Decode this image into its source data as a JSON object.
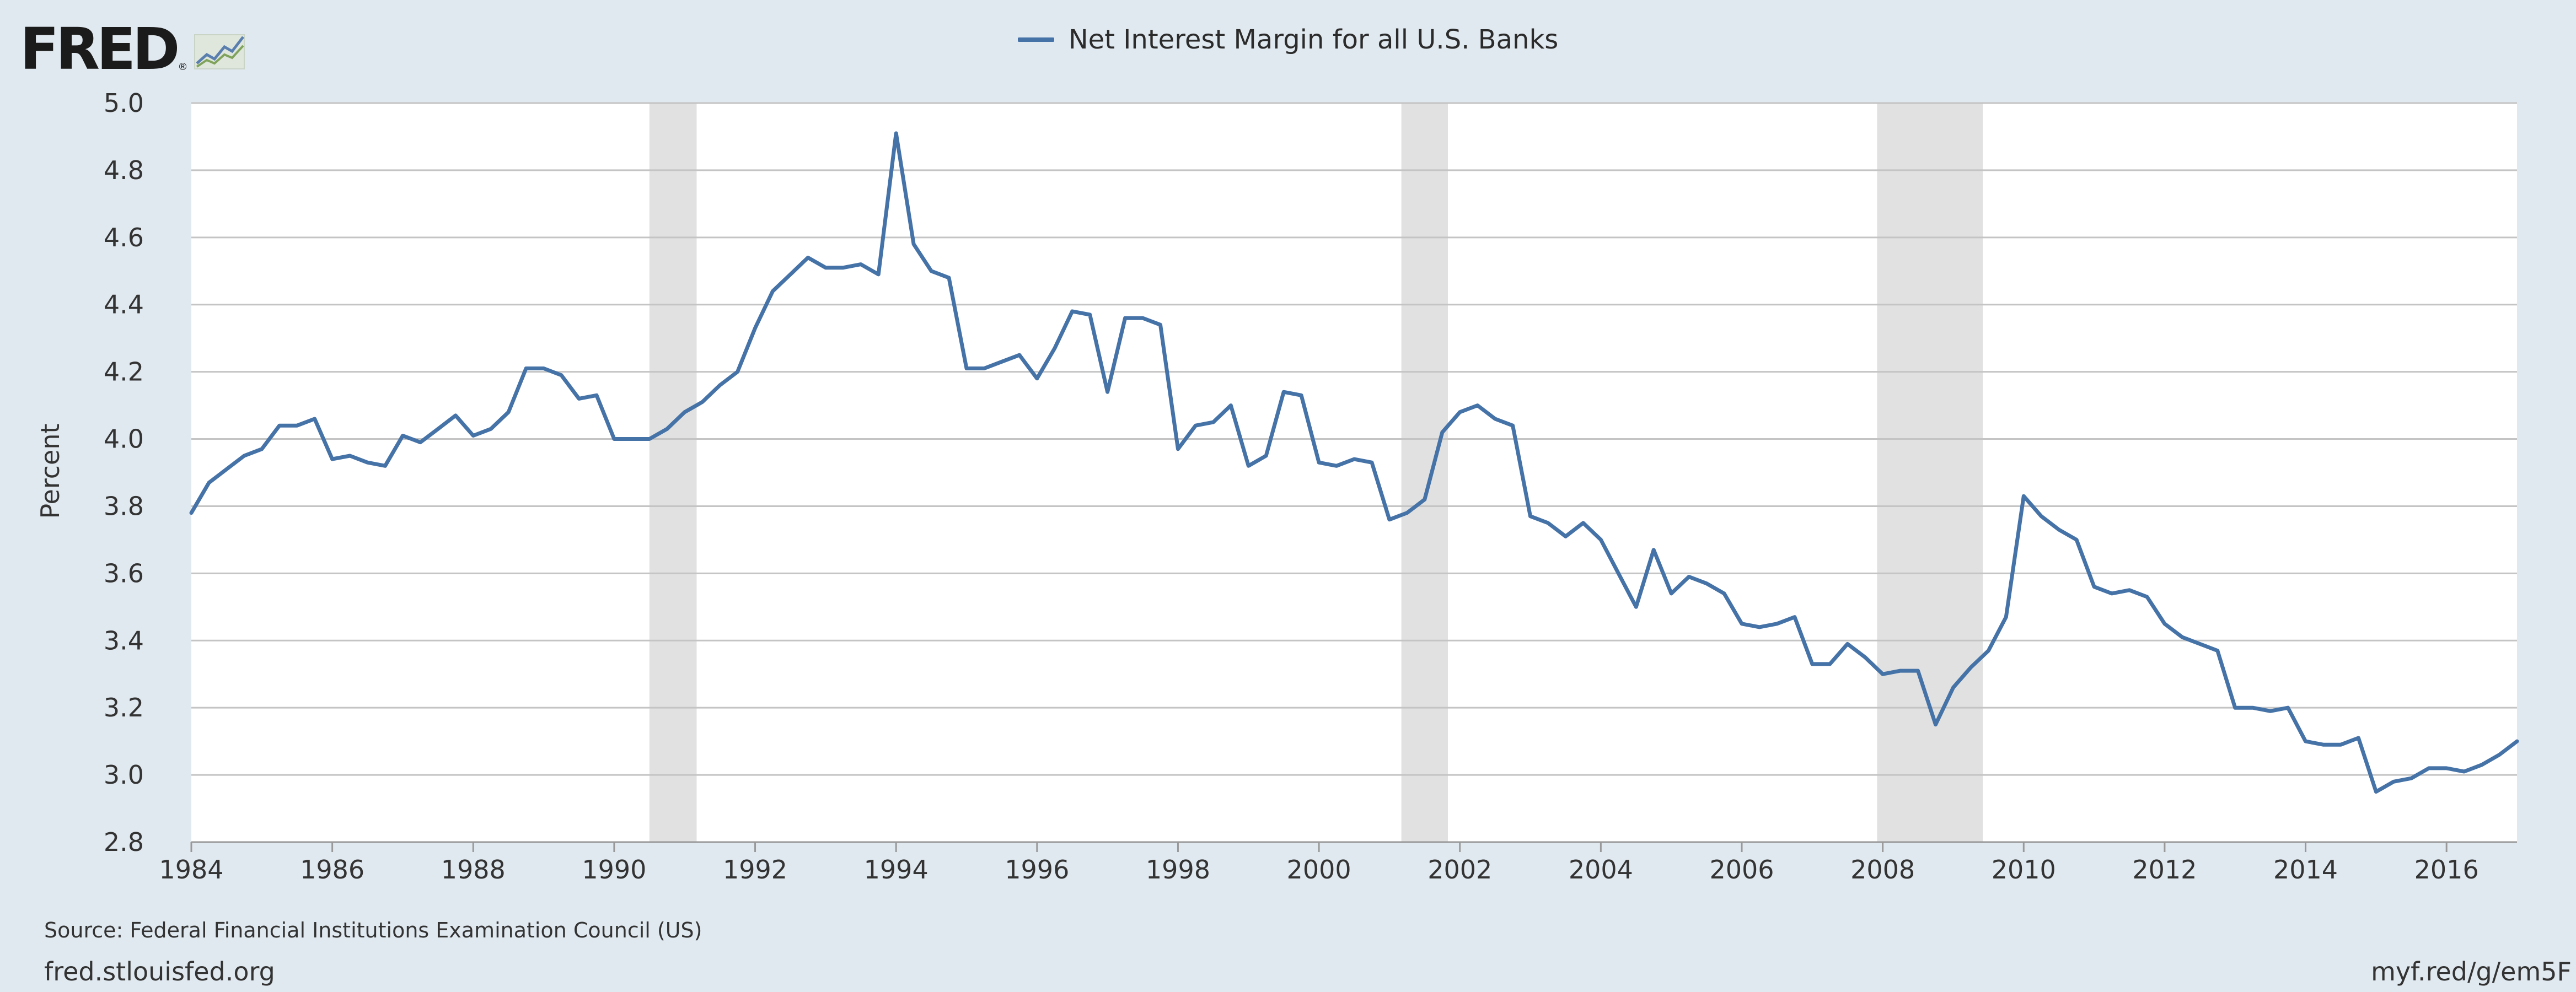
{
  "logo": {
    "text": "FRED",
    "mark": "®",
    "icon": "fred-graph-icon"
  },
  "footer": {
    "source": "Source: Federal Financial Institutions Examination Council (US)",
    "site": "fred.stlouisfed.org",
    "short_url": "myf.red/g/em5F"
  },
  "colors": {
    "line": "#4572a7",
    "recession": "#e1e1e1",
    "background": "#e1e9f0",
    "plot": "#ffffff",
    "grid": "#c4c4c4"
  },
  "chart_data": {
    "type": "line",
    "title": "",
    "xlabel": "",
    "ylabel": "Percent",
    "xlim": [
      1984.0,
      2017.0
    ],
    "ylim": [
      2.8,
      5.0
    ],
    "y_ticks": [
      "2.8",
      "3.0",
      "3.2",
      "3.4",
      "3.6",
      "3.8",
      "4.0",
      "4.2",
      "4.4",
      "4.6",
      "4.8",
      "5.0"
    ],
    "x_ticks": [
      "1984",
      "1986",
      "1988",
      "1990",
      "1992",
      "1994",
      "1996",
      "1998",
      "2000",
      "2002",
      "2004",
      "2006",
      "2008",
      "2010",
      "2012",
      "2014",
      "2016"
    ],
    "grid": "horizontal",
    "legend": "top-center",
    "recessions": [
      [
        1990.5,
        1991.17
      ],
      [
        2001.17,
        2001.83
      ],
      [
        2007.92,
        2009.42
      ]
    ],
    "series": [
      {
        "name": "Net Interest Margin for all U.S. Banks",
        "color": "#4572a7",
        "x": [
          1984.0,
          1984.25,
          1984.5,
          1984.75,
          1985.0,
          1985.25,
          1985.5,
          1985.75,
          1986.0,
          1986.25,
          1986.5,
          1986.75,
          1987.0,
          1987.25,
          1987.5,
          1987.75,
          1988.0,
          1988.25,
          1988.5,
          1988.75,
          1989.0,
          1989.25,
          1989.5,
          1989.75,
          1990.0,
          1990.25,
          1990.5,
          1990.75,
          1991.0,
          1991.25,
          1991.5,
          1991.75,
          1992.0,
          1992.25,
          1992.5,
          1992.75,
          1993.0,
          1993.25,
          1993.5,
          1993.75,
          1994.0,
          1994.25,
          1994.5,
          1994.75,
          1995.0,
          1995.25,
          1995.5,
          1995.75,
          1996.0,
          1996.25,
          1996.5,
          1996.75,
          1997.0,
          1997.25,
          1997.5,
          1997.75,
          1998.0,
          1998.25,
          1998.5,
          1998.75,
          1999.0,
          1999.25,
          1999.5,
          1999.75,
          2000.0,
          2000.25,
          2000.5,
          2000.75,
          2001.0,
          2001.25,
          2001.5,
          2001.75,
          2002.0,
          2002.25,
          2002.5,
          2002.75,
          2003.0,
          2003.25,
          2003.5,
          2003.75,
          2004.0,
          2004.25,
          2004.5,
          2004.75,
          2005.0,
          2005.25,
          2005.5,
          2005.75,
          2006.0,
          2006.25,
          2006.5,
          2006.75,
          2007.0,
          2007.25,
          2007.5,
          2007.75,
          2008.0,
          2008.25,
          2008.5,
          2008.75,
          2009.0,
          2009.25,
          2009.5,
          2009.75,
          2010.0,
          2010.25,
          2010.5,
          2010.75,
          2011.0,
          2011.25,
          2011.5,
          2011.75,
          2012.0,
          2012.25,
          2012.5,
          2012.75,
          2013.0,
          2013.25,
          2013.5,
          2013.75,
          2014.0,
          2014.25,
          2014.5,
          2014.75,
          2015.0,
          2015.25,
          2015.5,
          2015.75,
          2016.0,
          2016.25,
          2016.5,
          2016.75,
          2017.0
        ],
        "values": [
          3.78,
          3.87,
          3.91,
          3.95,
          3.97,
          4.04,
          4.04,
          4.06,
          3.94,
          3.95,
          3.93,
          3.92,
          4.01,
          3.99,
          4.03,
          4.07,
          4.01,
          4.03,
          4.08,
          4.21,
          4.21,
          4.19,
          4.12,
          4.13,
          4.0,
          4.0,
          4.0,
          4.03,
          4.08,
          4.11,
          4.16,
          4.2,
          4.33,
          4.44,
          4.49,
          4.54,
          4.51,
          4.51,
          4.52,
          4.49,
          4.91,
          4.58,
          4.5,
          4.48,
          4.21,
          4.21,
          4.23,
          4.25,
          4.18,
          4.27,
          4.38,
          4.37,
          4.14,
          4.36,
          4.36,
          4.34,
          3.97,
          4.04,
          4.05,
          4.1,
          3.92,
          3.95,
          4.14,
          4.13,
          3.93,
          3.92,
          3.94,
          3.93,
          3.76,
          3.78,
          3.82,
          4.02,
          4.08,
          4.1,
          4.06,
          4.04,
          3.77,
          3.75,
          3.71,
          3.75,
          3.7,
          3.6,
          3.5,
          3.67,
          3.54,
          3.59,
          3.57,
          3.54,
          3.45,
          3.44,
          3.45,
          3.47,
          3.33,
          3.33,
          3.39,
          3.35,
          3.3,
          3.31,
          3.31,
          3.15,
          3.26,
          3.32,
          3.37,
          3.47,
          3.83,
          3.77,
          3.73,
          3.7,
          3.56,
          3.54,
          3.55,
          3.53,
          3.45,
          3.41,
          3.39,
          3.37,
          3.2,
          3.2,
          3.19,
          3.2,
          3.1,
          3.09,
          3.09,
          3.11,
          2.95,
          2.98,
          2.99,
          3.02,
          3.02,
          3.01,
          3.03,
          3.06,
          3.1
        ]
      }
    ]
  }
}
